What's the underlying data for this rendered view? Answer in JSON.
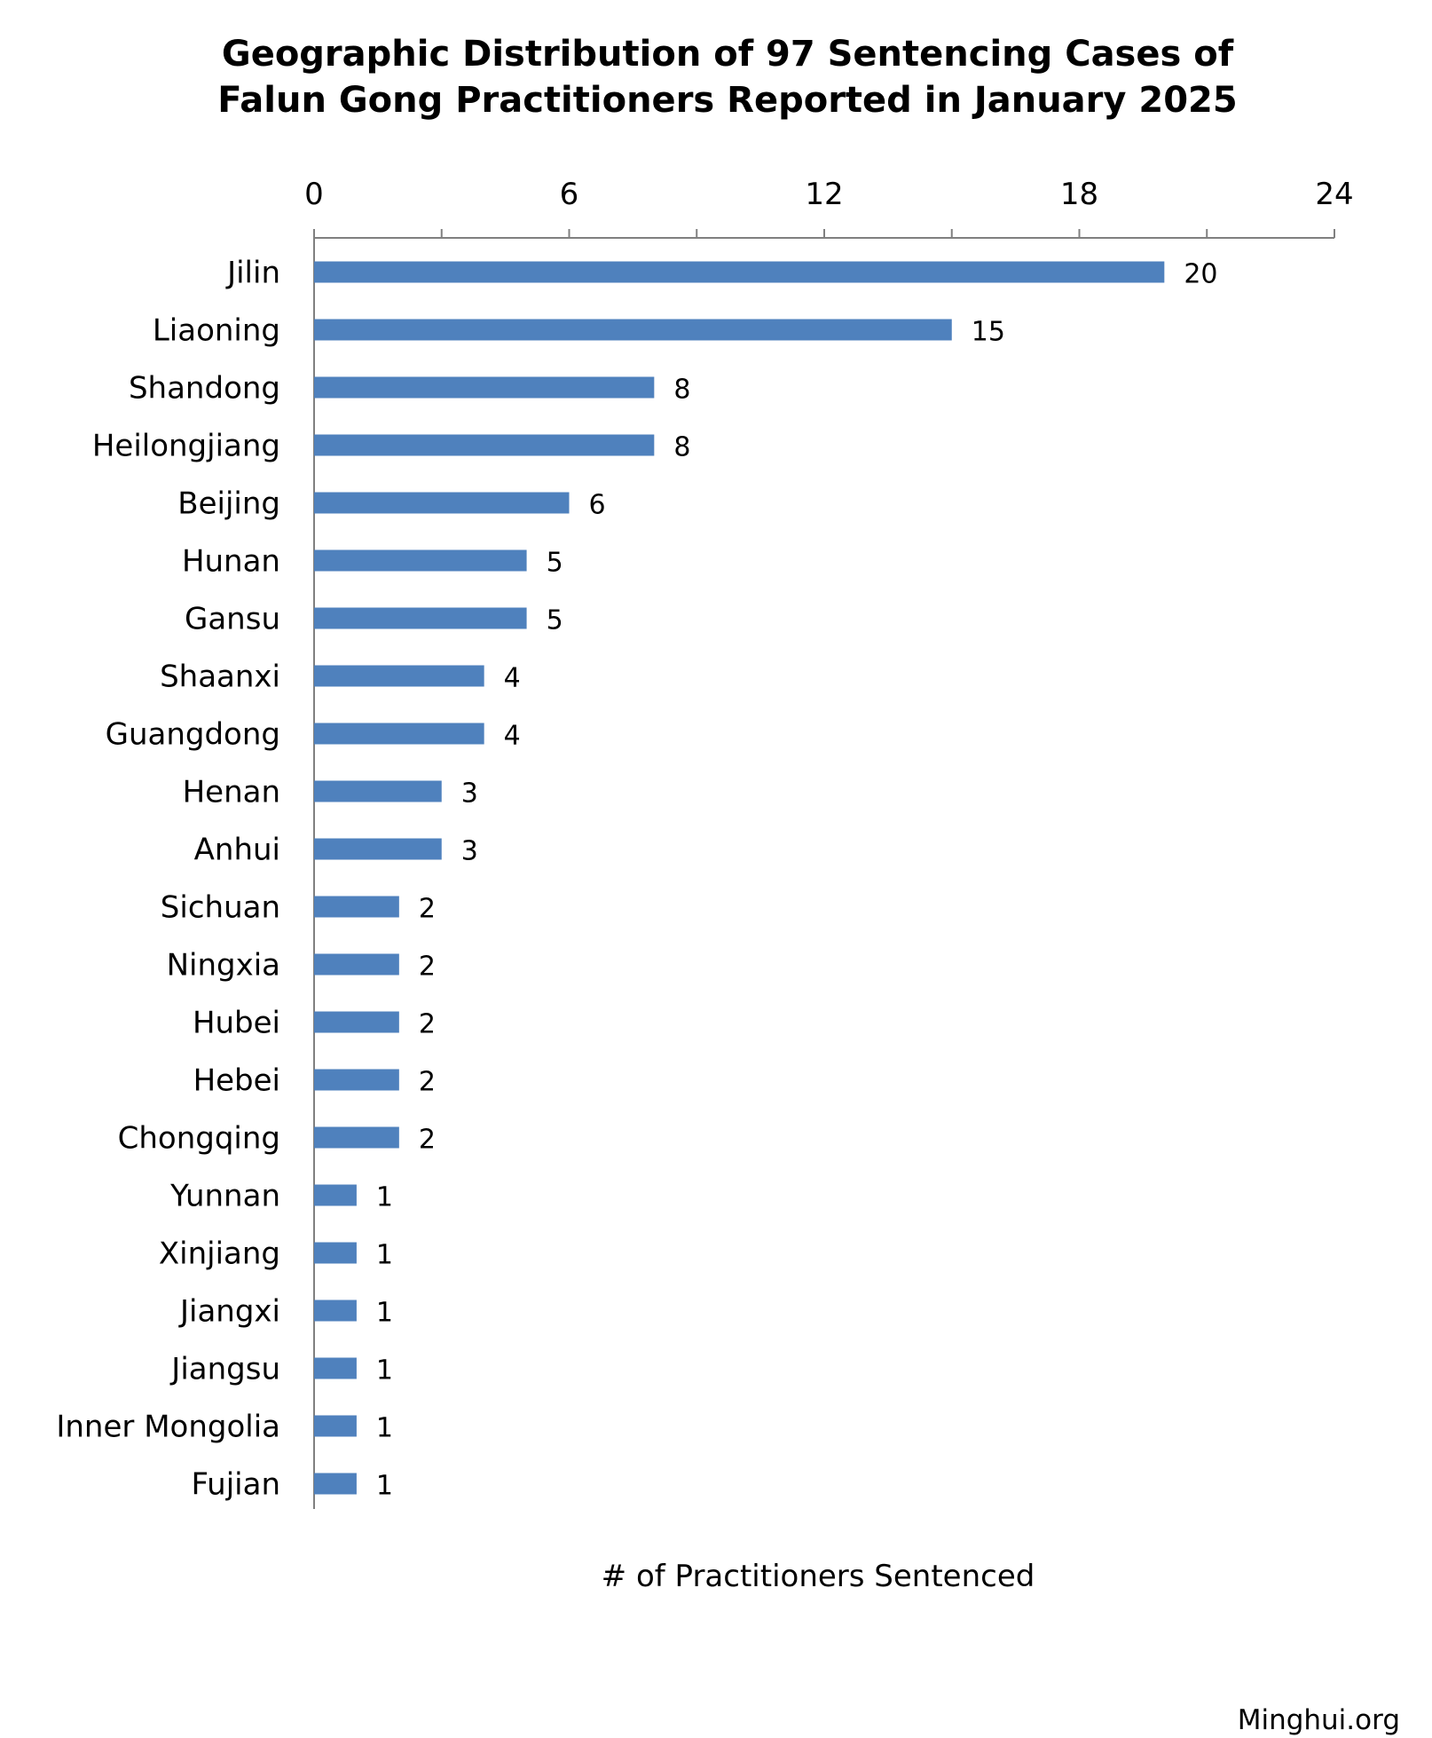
{
  "chart_data": {
    "type": "bar",
    "orientation": "horizontal",
    "title_lines": [
      "Geographic Distribution of 97 Sentencing Cases of",
      "Falun Gong Practitioners Reported in January 2025"
    ],
    "xlabel": "# of Practitioners Sentenced",
    "ylabel": "",
    "xlim": [
      0,
      24
    ],
    "x_ticks": [
      0,
      6,
      12,
      18,
      24
    ],
    "x_axis_position": "top",
    "grid": false,
    "legend": "none",
    "categories": [
      "Jilin",
      "Liaoning",
      "Shandong",
      "Heilongjiang",
      "Beijing",
      "Hunan",
      "Gansu",
      "Shaanxi",
      "Guangdong",
      "Henan",
      "Anhui",
      "Sichuan",
      "Ningxia",
      "Hubei",
      "Hebei",
      "Chongqing",
      "Yunnan",
      "Xinjiang",
      "Jiangxi",
      "Jiangsu",
      "Inner Mongolia",
      "Fujian"
    ],
    "values": [
      20,
      15,
      8,
      8,
      6,
      5,
      5,
      4,
      4,
      3,
      3,
      2,
      2,
      2,
      2,
      2,
      1,
      1,
      1,
      1,
      1,
      1
    ],
    "data_labels": true
  },
  "colors": {
    "bar": "#4F81BD",
    "axis": "#808080",
    "text": "#000000",
    "watermark": "#808080"
  },
  "watermark": "Minghui.org"
}
